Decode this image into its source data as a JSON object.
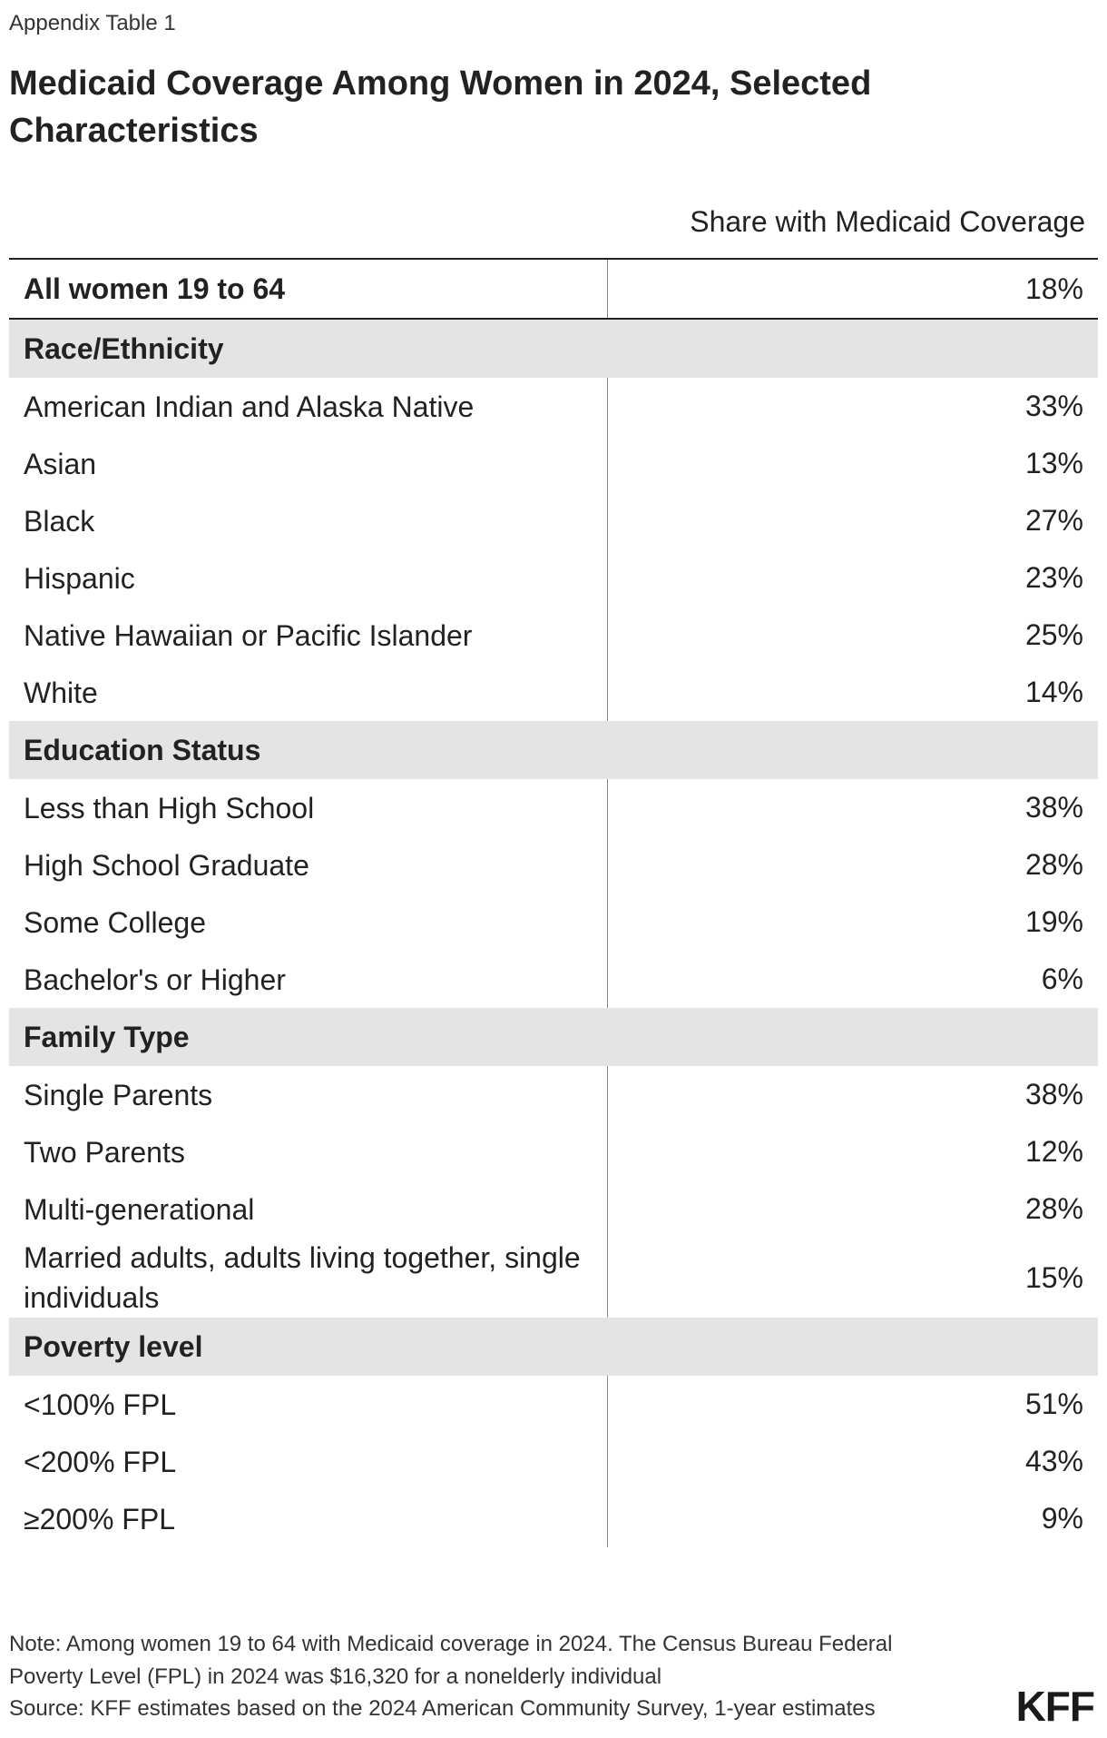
{
  "header": {
    "eyebrow": "Appendix Table 1",
    "title": "Medicaid Coverage Among Women in 2024, Selected Characteristics",
    "column_header": "Share with Medicaid Coverage"
  },
  "chart_data": {
    "type": "table",
    "title": "Medicaid Coverage Among Women in 2024, Selected Characteristics",
    "columns": [
      "",
      "Share with Medicaid Coverage"
    ],
    "total": {
      "label": "All women 19 to 64",
      "value": "18%"
    },
    "groups": [
      {
        "name": "Race/Ethnicity",
        "rows": [
          {
            "label": "American Indian and Alaska Native",
            "value": "33%"
          },
          {
            "label": "Asian",
            "value": "13%"
          },
          {
            "label": "Black",
            "value": "27%"
          },
          {
            "label": "Hispanic",
            "value": "23%"
          },
          {
            "label": "Native Hawaiian or Pacific Islander",
            "value": "25%"
          },
          {
            "label": "White",
            "value": "14%"
          }
        ]
      },
      {
        "name": "Education Status",
        "rows": [
          {
            "label": "Less than High School",
            "value": "38%"
          },
          {
            "label": "High School Graduate",
            "value": "28%"
          },
          {
            "label": "Some College",
            "value": "19%"
          },
          {
            "label": "Bachelor's or Higher",
            "value": "6%"
          }
        ]
      },
      {
        "name": "Family Type",
        "rows": [
          {
            "label": "Single Parents",
            "value": "38%"
          },
          {
            "label": "Two Parents",
            "value": "12%"
          },
          {
            "label": "Multi-generational",
            "value": "28%"
          },
          {
            "label": "Married adults, adults living together, single individuals",
            "value": "15%"
          }
        ]
      },
      {
        "name": "Poverty level",
        "rows": [
          {
            "label": "<100% FPL",
            "value": "51%"
          },
          {
            "label": "<200% FPL",
            "value": "43%"
          },
          {
            "label": "≥200% FPL",
            "value": "9%"
          }
        ]
      }
    ]
  },
  "footer": {
    "note": "Note: Among women 19 to 64 with Medicaid coverage in 2024. The Census Bureau Federal Poverty Level (FPL) in 2024 was $16,320 for a nonelderly individual",
    "source": "Source: KFF estimates based on the 2024 American Community Survey, 1-year estimates",
    "logo": "KFF"
  },
  "colors": {
    "group_background": "#e4e4e4",
    "text": "#222222",
    "rule": "#222222"
  }
}
